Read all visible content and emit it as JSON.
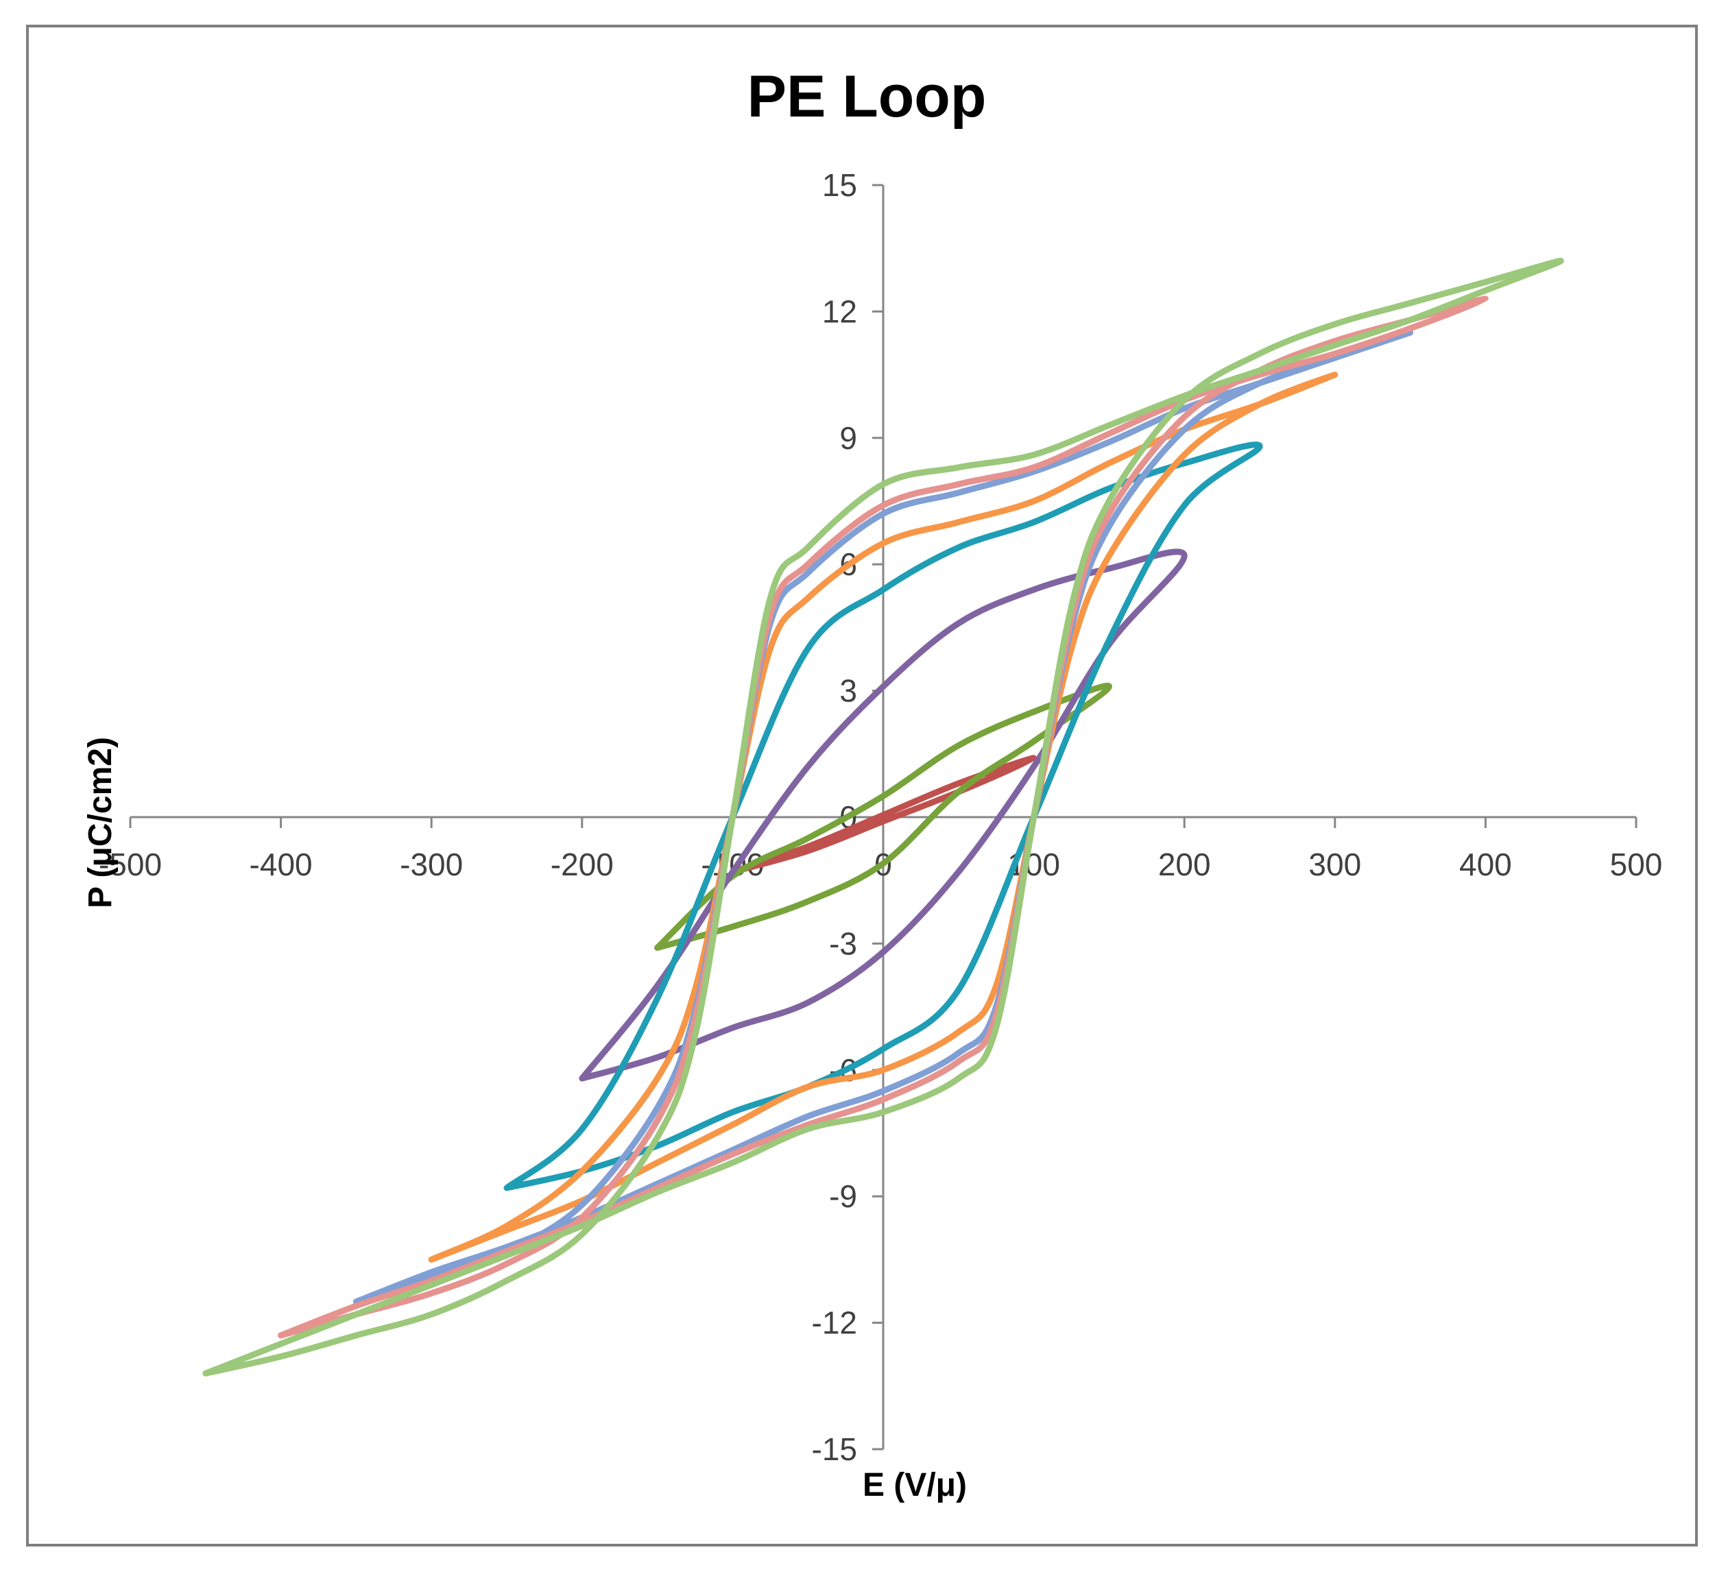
{
  "chart_data": {
    "type": "line",
    "title": "PE Loop",
    "xlabel": "E (V/μ)",
    "ylabel": "P (μC/cm2)",
    "xlim": [
      -500,
      500
    ],
    "ylim": [
      -15,
      15
    ],
    "x_ticks": [
      -500,
      -400,
      -300,
      -200,
      -100,
      0,
      100,
      200,
      300,
      400,
      500
    ],
    "x_tick_labels": [
      "-500",
      "-400",
      "-300",
      "-200",
      "-100",
      "0",
      "100",
      "200",
      "300",
      "400",
      "500"
    ],
    "y_ticks": [
      -15,
      -12,
      -9,
      -6,
      -3,
      0,
      3,
      6,
      9,
      12,
      15
    ],
    "y_tick_labels": [
      "-15",
      "-12",
      "-9",
      "-6",
      "-3",
      "0",
      "3",
      "6",
      "9",
      "12",
      "15"
    ],
    "grid": false,
    "legend": "none",
    "series": [
      {
        "color": "#c0504d",
        "x": [
          -100,
          -50,
          0,
          50,
          100,
          50,
          0,
          -50,
          -100
        ],
        "y": [
          -1.3,
          -0.7,
          0.05,
          0.8,
          1.4,
          0.6,
          -0.1,
          -0.8,
          -1.3
        ]
      },
      {
        "color": "#77a33a",
        "x": [
          -150,
          -100,
          -50,
          0,
          50,
          100,
          150,
          100,
          50,
          0,
          -50,
          -100,
          -150
        ],
        "y": [
          -3.1,
          -2.6,
          -2.0,
          -1.1,
          0.6,
          1.8,
          3.1,
          2.5,
          1.7,
          0.5,
          -0.5,
          -1.4,
          -3.1
        ]
      },
      {
        "color": "#8064a2",
        "x": [
          -200,
          -150,
          -100,
          -50,
          0,
          50,
          100,
          150,
          200,
          150,
          100,
          50,
          0,
          -50,
          -100,
          -150,
          -200
        ],
        "y": [
          -6.2,
          -5.7,
          -5.0,
          -4.4,
          -3.2,
          -1.3,
          1.2,
          4.1,
          6.2,
          5.9,
          5.4,
          4.6,
          3.1,
          1.2,
          -1.3,
          -4.0,
          -6.2
        ]
      },
      {
        "color": "#1f9db5",
        "x": [
          -250,
          -200,
          -150,
          -100,
          -50,
          0,
          50,
          100,
          150,
          200,
          250,
          200,
          150,
          100,
          50,
          0,
          -50,
          -100,
          -150,
          -200,
          -250
        ],
        "y": [
          -8.8,
          -8.4,
          -7.8,
          -7.0,
          -6.4,
          -5.5,
          -4.1,
          0,
          4.2,
          7.4,
          8.8,
          8.4,
          7.8,
          7.0,
          6.4,
          5.4,
          4.0,
          0,
          -4.3,
          -7.4,
          -8.8
        ]
      },
      {
        "color": "#f79646",
        "x": [
          -300,
          -250,
          -200,
          -150,
          -100,
          -50,
          0,
          50,
          75,
          100,
          125,
          150,
          200,
          250,
          300,
          250,
          200,
          150,
          100,
          50,
          0,
          -50,
          -75,
          -100,
          -125,
          -150,
          -200,
          -250,
          -300
        ],
        "y": [
          -10.5,
          -9.8,
          -9.1,
          -8.2,
          -7.3,
          -6.4,
          -6.0,
          -5.1,
          -4.0,
          0,
          4.0,
          6.2,
          8.6,
          9.8,
          10.5,
          9.8,
          9.2,
          8.4,
          7.5,
          7.0,
          6.5,
          5.2,
          4.0,
          0,
          -4.1,
          -6.2,
          -8.4,
          -9.7,
          -10.5
        ]
      },
      {
        "color": "#7f9fd5",
        "x": [
          -350,
          -300,
          -250,
          -200,
          -150,
          -100,
          -50,
          0,
          50,
          75,
          100,
          125,
          150,
          200,
          250,
          300,
          350,
          300,
          250,
          200,
          150,
          100,
          50,
          0,
          -50,
          -75,
          -100,
          -125,
          -150,
          -200,
          -250,
          -300,
          -350
        ],
        "y": [
          -11.5,
          -10.8,
          -10.2,
          -9.5,
          -8.7,
          -7.9,
          -7.1,
          -6.5,
          -5.6,
          -4.5,
          0,
          4.5,
          6.9,
          9.2,
          10.3,
          10.9,
          11.5,
          10.9,
          10.3,
          9.7,
          8.9,
          8.2,
          7.7,
          7.2,
          5.8,
          4.6,
          0,
          -4.6,
          -6.9,
          -9.2,
          -10.3,
          -10.9,
          -11.5
        ]
      },
      {
        "color": "#e6928f",
        "x": [
          -400,
          -350,
          -300,
          -250,
          -200,
          -150,
          -100,
          -50,
          0,
          50,
          75,
          100,
          125,
          150,
          200,
          250,
          300,
          350,
          400,
          350,
          300,
          250,
          200,
          150,
          100,
          50,
          0,
          -50,
          -75,
          -100,
          -125,
          -150,
          -200,
          -250,
          -300,
          -350,
          -400
        ],
        "y": [
          -12.3,
          -11.6,
          -11.0,
          -10.3,
          -9.6,
          -8.8,
          -8.0,
          -7.3,
          -6.7,
          -5.8,
          -4.7,
          0,
          4.7,
          7.2,
          9.5,
          10.6,
          11.3,
          11.8,
          12.3,
          11.6,
          11.0,
          10.5,
          9.9,
          9.1,
          8.3,
          7.9,
          7.4,
          6.0,
          4.8,
          0,
          -4.8,
          -7.2,
          -9.5,
          -10.6,
          -11.3,
          -11.8,
          -12.3
        ]
      },
      {
        "color": "#9bc87a",
        "x": [
          -450,
          -400,
          -350,
          -300,
          -250,
          -200,
          -150,
          -100,
          -50,
          0,
          50,
          75,
          100,
          125,
          150,
          200,
          250,
          300,
          350,
          400,
          450,
          400,
          350,
          300,
          250,
          200,
          150,
          100,
          50,
          0,
          -50,
          -75,
          -100,
          -125,
          -150,
          -200,
          -250,
          -300,
          -350,
          -400,
          -450
        ],
        "y": [
          -13.2,
          -12.5,
          -11.8,
          -11.1,
          -10.4,
          -9.7,
          -8.9,
          -8.2,
          -7.4,
          -7.0,
          -6.2,
          -5.0,
          0,
          5.0,
          7.5,
          9.9,
          11.0,
          11.7,
          12.2,
          12.7,
          13.2,
          12.5,
          11.8,
          11.2,
          10.6,
          10.0,
          9.3,
          8.6,
          8.3,
          7.9,
          6.4,
          5.2,
          0,
          -5.2,
          -7.6,
          -9.9,
          -11.0,
          -11.8,
          -12.3,
          -12.8,
          -13.2
        ]
      }
    ]
  }
}
